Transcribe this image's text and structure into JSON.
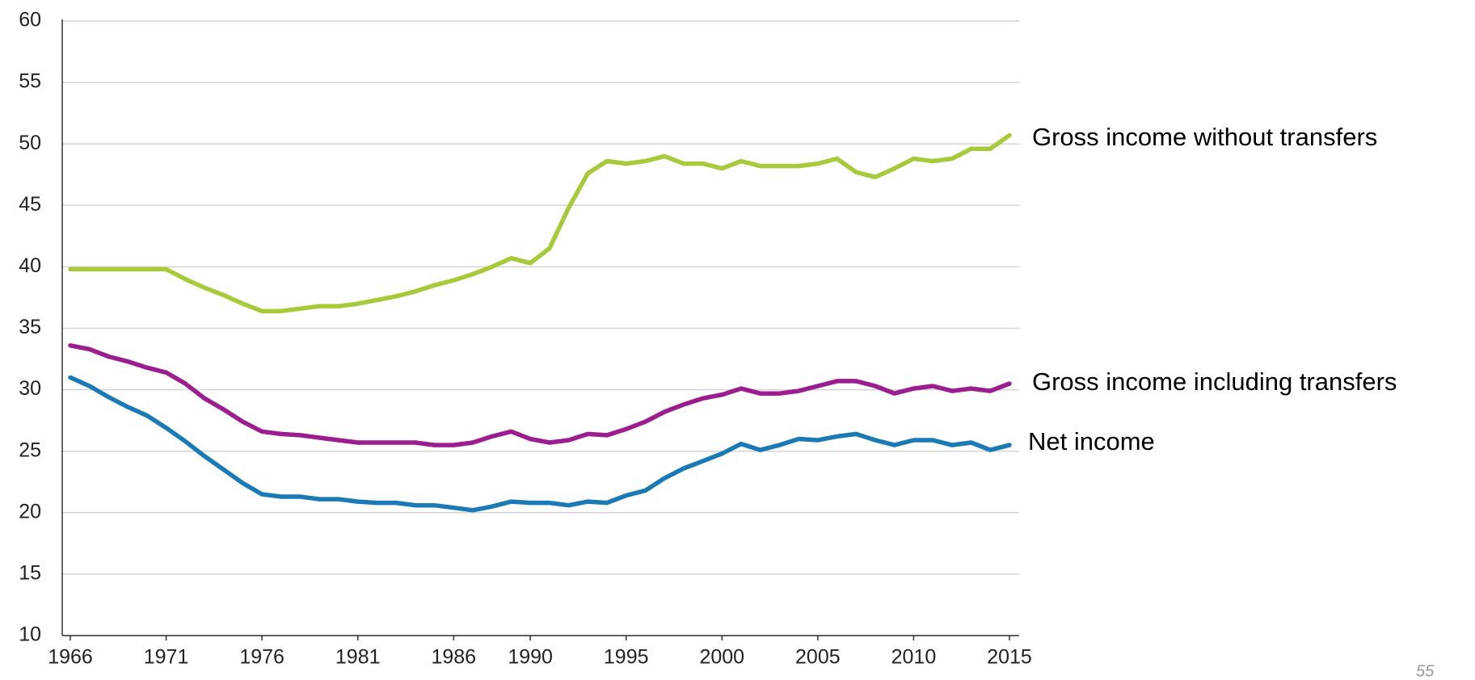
{
  "chart_data": {
    "type": "line",
    "x": [
      1966,
      1967,
      1968,
      1969,
      1970,
      1971,
      1972,
      1973,
      1974,
      1975,
      1976,
      1977,
      1978,
      1979,
      1980,
      1981,
      1982,
      1983,
      1984,
      1985,
      1986,
      1987,
      1988,
      1989,
      1990,
      1991,
      1992,
      1993,
      1994,
      1995,
      1996,
      1997,
      1998,
      1999,
      2000,
      2001,
      2002,
      2003,
      2004,
      2005,
      2006,
      2007,
      2008,
      2009,
      2010,
      2011,
      2012,
      2013,
      2014,
      2015
    ],
    "series": [
      {
        "name": "Gross income without transfers",
        "color": "#a8c93a",
        "values": [
          39.8,
          39.8,
          39.8,
          39.8,
          39.8,
          39.8,
          39.0,
          38.3,
          37.7,
          37.0,
          36.4,
          36.4,
          36.6,
          36.8,
          36.8,
          37.0,
          37.3,
          37.6,
          38.0,
          38.5,
          38.9,
          39.4,
          40.0,
          40.7,
          40.3,
          41.5,
          44.8,
          47.6,
          48.6,
          48.4,
          48.6,
          49.0,
          48.4,
          48.4,
          48.0,
          48.6,
          48.2,
          48.2,
          48.2,
          48.4,
          48.8,
          47.7,
          47.3,
          48.0,
          48.8,
          48.6,
          48.8,
          49.6,
          49.6,
          50.7
        ]
      },
      {
        "name": "Gross income including transfers",
        "color": "#9c1d8f",
        "values": [
          33.6,
          33.3,
          32.7,
          32.3,
          31.8,
          31.4,
          30.5,
          29.3,
          28.4,
          27.4,
          26.6,
          26.4,
          26.3,
          26.1,
          25.9,
          25.7,
          25.7,
          25.7,
          25.7,
          25.5,
          25.5,
          25.7,
          26.2,
          26.6,
          26.0,
          25.7,
          25.9,
          26.4,
          26.3,
          26.8,
          27.4,
          28.2,
          28.8,
          29.3,
          29.6,
          30.1,
          29.7,
          29.7,
          29.9,
          30.3,
          30.7,
          30.7,
          30.3,
          29.7,
          30.1,
          30.3,
          29.9,
          30.1,
          29.9,
          30.5
        ]
      },
      {
        "name": "Net income",
        "color": "#1a7ab5",
        "values": [
          31.0,
          30.3,
          29.4,
          28.6,
          27.9,
          26.9,
          25.8,
          24.6,
          23.5,
          22.4,
          21.5,
          21.3,
          21.3,
          21.1,
          21.1,
          20.9,
          20.8,
          20.8,
          20.6,
          20.6,
          20.4,
          20.2,
          20.5,
          20.9,
          20.8,
          20.8,
          20.6,
          20.9,
          20.8,
          21.4,
          21.8,
          22.8,
          23.6,
          24.2,
          24.8,
          25.6,
          25.1,
          25.5,
          26.0,
          25.9,
          26.2,
          26.4,
          25.9,
          25.5,
          25.9,
          25.9,
          25.5,
          25.7,
          25.1,
          25.5
        ]
      }
    ],
    "xlim": [
      1966,
      2015
    ],
    "xticks": [
      1966,
      1971,
      1976,
      1981,
      1986,
      1990,
      1995,
      2000,
      2005,
      2010,
      2015
    ],
    "ylim": [
      10,
      60
    ],
    "yticks": [
      10,
      15,
      20,
      25,
      30,
      35,
      40,
      45,
      50,
      55,
      60
    ],
    "grid": true
  },
  "page_number": "55"
}
